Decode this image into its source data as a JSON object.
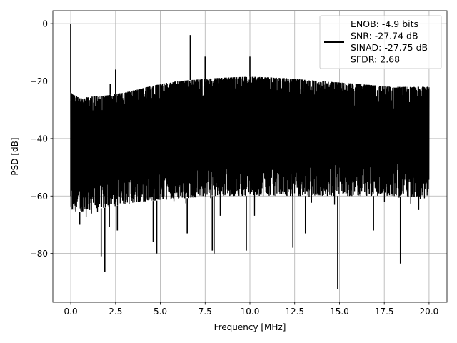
{
  "chart_data": {
    "type": "line",
    "title": "",
    "xlabel": "Frequency [MHz]",
    "ylabel": "PSD [dB]",
    "xlim": [
      -1.0,
      21.0
    ],
    "ylim": [
      -97.0,
      4.5
    ],
    "grid": true,
    "xticks": [
      0.0,
      2.5,
      5.0,
      7.5,
      10.0,
      12.5,
      15.0,
      17.5,
      20.0
    ],
    "xtick_labels": [
      "0.0",
      "2.5",
      "5.0",
      "7.5",
      "10.0",
      "12.5",
      "15.0",
      "17.5",
      "20.0"
    ],
    "yticks": [
      0,
      -20,
      -40,
      -60,
      -80
    ],
    "ytick_labels": [
      "0",
      "−20",
      "−40",
      "−60",
      "−80"
    ],
    "legend": {
      "placement": "top-right",
      "entries": [
        {
          "text": "ENOB: -4.9 bits\nSNR: -27.74 dB\nSINAD: -27.75 dB\nSFDR: 2.68"
        }
      ]
    },
    "series": [
      {
        "color": "#000000",
        "upper_envelope": [
          [
            0.0,
            -24
          ],
          [
            0.5,
            -26
          ],
          [
            1.0,
            -25.5
          ],
          [
            2.0,
            -25
          ],
          [
            3.0,
            -24
          ],
          [
            4.0,
            -22.5
          ],
          [
            5.0,
            -21
          ],
          [
            6.0,
            -20
          ],
          [
            7.0,
            -19.5
          ],
          [
            8.0,
            -19
          ],
          [
            9.0,
            -18.7
          ],
          [
            10.0,
            -18.5
          ],
          [
            11.0,
            -18.7
          ],
          [
            12.0,
            -19
          ],
          [
            13.0,
            -19.5
          ],
          [
            14.0,
            -20
          ],
          [
            15.0,
            -20.5
          ],
          [
            16.0,
            -21
          ],
          [
            17.0,
            -21.5
          ],
          [
            18.0,
            -22
          ],
          [
            19.0,
            -22
          ],
          [
            20.0,
            -22
          ]
        ],
        "lower_envelope": [
          [
            0.0,
            -66
          ],
          [
            2.0,
            -64
          ],
          [
            4.0,
            -62
          ],
          [
            6.0,
            -61
          ],
          [
            8.0,
            -60
          ],
          [
            10.0,
            -60
          ],
          [
            12.0,
            -60
          ],
          [
            14.0,
            -60
          ],
          [
            16.0,
            -60
          ],
          [
            18.0,
            -60
          ],
          [
            20.0,
            -61
          ]
        ],
        "spikes_up": [
          [
            0.0,
            0.0
          ],
          [
            2.5,
            -16
          ],
          [
            6.67,
            -4
          ],
          [
            7.5,
            -11.5
          ],
          [
            10.0,
            -11.5
          ],
          [
            2.2,
            -21
          ]
        ],
        "dips_down": [
          [
            0.5,
            -70
          ],
          [
            1.7,
            -81
          ],
          [
            1.9,
            -86.5
          ],
          [
            2.6,
            -72
          ],
          [
            4.6,
            -76
          ],
          [
            4.8,
            -80
          ],
          [
            6.5,
            -73
          ],
          [
            7.9,
            -79
          ],
          [
            8.0,
            -80
          ],
          [
            9.8,
            -79
          ],
          [
            12.4,
            -78
          ],
          [
            14.9,
            -92.5
          ],
          [
            18.4,
            -83.5
          ],
          [
            13.1,
            -73
          ],
          [
            16.9,
            -72
          ]
        ]
      }
    ]
  }
}
